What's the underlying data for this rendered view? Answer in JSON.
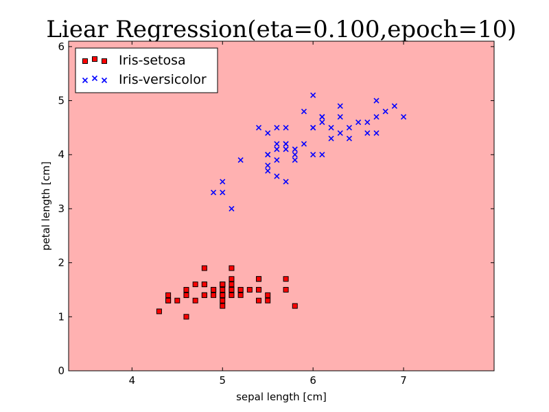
{
  "chart_data": {
    "type": "scatter",
    "title": "Liear Regression(eta=0.100,epoch=10)",
    "xlabel": "sepal length [cm]",
    "ylabel": "petal length [cm]",
    "xlim": [
      3.3,
      8.0
    ],
    "ylim": [
      0,
      6.1
    ],
    "xticks": [
      4,
      5,
      6,
      7
    ],
    "yticks": [
      0,
      1,
      2,
      3,
      4,
      5,
      6
    ],
    "background_color": "#ffb1b1",
    "grid": false,
    "legend_position": "top-left",
    "series": [
      {
        "name": "Iris-setosa",
        "marker": "square",
        "color": "#ff0000",
        "edge_color": "#000000",
        "points": [
          [
            5.1,
            1.4
          ],
          [
            4.9,
            1.4
          ],
          [
            4.7,
            1.3
          ],
          [
            4.6,
            1.5
          ],
          [
            5.0,
            1.4
          ],
          [
            5.4,
            1.7
          ],
          [
            4.6,
            1.4
          ],
          [
            5.0,
            1.5
          ],
          [
            4.4,
            1.4
          ],
          [
            4.9,
            1.5
          ],
          [
            5.4,
            1.5
          ],
          [
            4.8,
            1.6
          ],
          [
            4.8,
            1.4
          ],
          [
            4.3,
            1.1
          ],
          [
            5.8,
            1.2
          ],
          [
            5.7,
            1.5
          ],
          [
            5.4,
            1.3
          ],
          [
            5.1,
            1.4
          ],
          [
            5.7,
            1.7
          ],
          [
            5.1,
            1.5
          ],
          [
            5.4,
            1.7
          ],
          [
            5.1,
            1.5
          ],
          [
            4.6,
            1.0
          ],
          [
            5.1,
            1.7
          ],
          [
            4.8,
            1.9
          ],
          [
            5.0,
            1.6
          ],
          [
            5.0,
            1.6
          ],
          [
            5.2,
            1.5
          ],
          [
            5.2,
            1.4
          ],
          [
            4.7,
            1.6
          ],
          [
            4.8,
            1.6
          ],
          [
            5.4,
            1.5
          ],
          [
            5.2,
            1.5
          ],
          [
            5.5,
            1.4
          ],
          [
            4.9,
            1.5
          ],
          [
            5.0,
            1.2
          ],
          [
            5.5,
            1.3
          ],
          [
            4.9,
            1.5
          ],
          [
            4.4,
            1.3
          ],
          [
            5.1,
            1.5
          ],
          [
            5.0,
            1.3
          ],
          [
            4.5,
            1.3
          ],
          [
            4.4,
            1.3
          ],
          [
            5.0,
            1.6
          ],
          [
            5.1,
            1.9
          ],
          [
            4.8,
            1.4
          ],
          [
            5.1,
            1.6
          ],
          [
            4.6,
            1.4
          ],
          [
            5.3,
            1.5
          ],
          [
            5.0,
            1.4
          ]
        ]
      },
      {
        "name": "Iris-versicolor",
        "marker": "x",
        "color": "#0000ff",
        "points": [
          [
            7.0,
            4.7
          ],
          [
            6.4,
            4.5
          ],
          [
            6.9,
            4.9
          ],
          [
            5.5,
            4.0
          ],
          [
            6.5,
            4.6
          ],
          [
            5.7,
            4.5
          ],
          [
            6.3,
            4.7
          ],
          [
            4.9,
            3.3
          ],
          [
            6.6,
            4.6
          ],
          [
            5.2,
            3.9
          ],
          [
            5.0,
            3.5
          ],
          [
            5.9,
            4.2
          ],
          [
            6.0,
            4.0
          ],
          [
            6.1,
            4.7
          ],
          [
            5.6,
            3.6
          ],
          [
            6.7,
            4.4
          ],
          [
            5.6,
            4.5
          ],
          [
            5.8,
            4.1
          ],
          [
            6.2,
            4.5
          ],
          [
            5.6,
            3.9
          ],
          [
            5.9,
            4.8
          ],
          [
            6.1,
            4.0
          ],
          [
            6.3,
            4.9
          ],
          [
            6.1,
            4.7
          ],
          [
            6.4,
            4.3
          ],
          [
            6.6,
            4.4
          ],
          [
            6.8,
            4.8
          ],
          [
            6.7,
            5.0
          ],
          [
            6.0,
            4.5
          ],
          [
            5.7,
            3.5
          ],
          [
            5.5,
            3.8
          ],
          [
            5.5,
            3.7
          ],
          [
            5.8,
            3.9
          ],
          [
            6.0,
            5.1
          ],
          [
            5.4,
            4.5
          ],
          [
            6.0,
            4.5
          ],
          [
            6.7,
            4.7
          ],
          [
            6.3,
            4.4
          ],
          [
            5.6,
            4.1
          ],
          [
            5.5,
            4.0
          ],
          [
            5.5,
            4.4
          ],
          [
            6.1,
            4.6
          ],
          [
            5.8,
            4.0
          ],
          [
            5.0,
            3.3
          ],
          [
            5.6,
            4.2
          ],
          [
            5.7,
            4.2
          ],
          [
            5.7,
            4.2
          ],
          [
            6.2,
            4.3
          ],
          [
            5.1,
            3.0
          ],
          [
            5.7,
            4.1
          ]
        ]
      }
    ]
  }
}
